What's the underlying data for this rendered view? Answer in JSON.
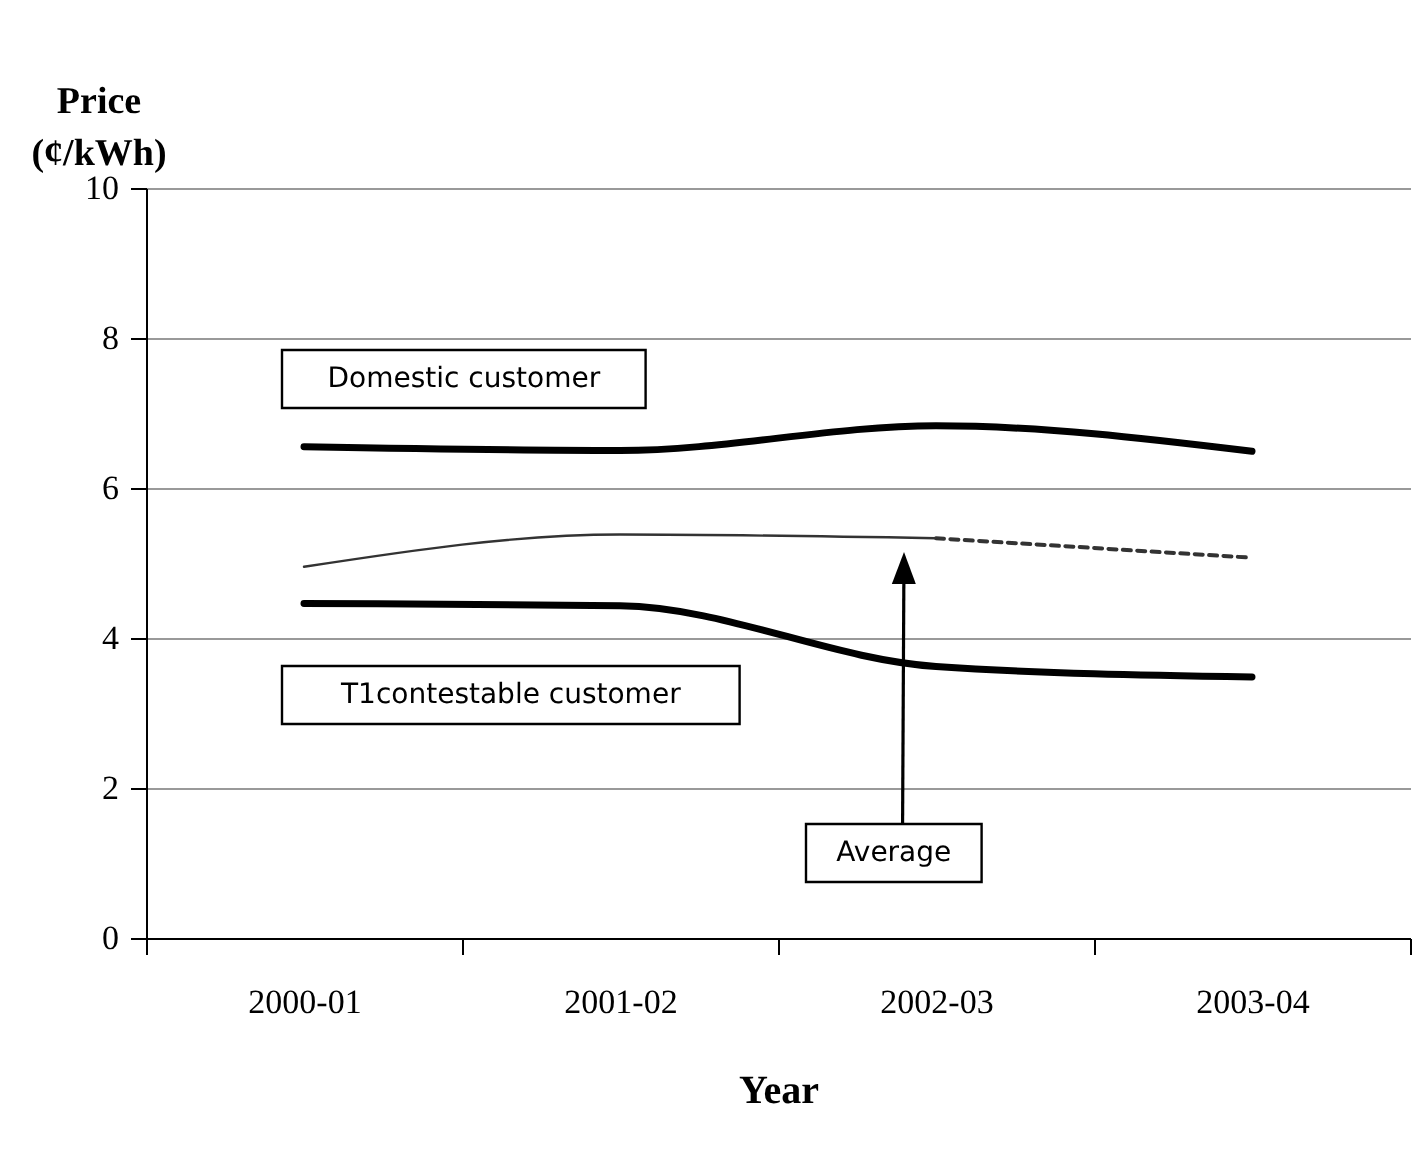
{
  "chart_data": {
    "type": "line",
    "xlabel": "Year",
    "ylabel": "Price (¢/kWh)",
    "categories": [
      "2000-01",
      "2001-02",
      "2002-03",
      "2003-04"
    ],
    "series": [
      {
        "name": "Domestic customer",
        "color": "#000000",
        "values": [
          6.55,
          6.5,
          6.83,
          6.49
        ]
      },
      {
        "name": "Average",
        "color": "#333333",
        "values": [
          4.95,
          5.38,
          5.33,
          null
        ]
      },
      {
        "color": "#333333",
        "line_style": "dashed",
        "values": [
          null,
          null,
          5.33,
          5.07
        ]
      },
      {
        "name": "T1contestable customer",
        "color": "#000000",
        "values": [
          4.46,
          4.43,
          3.62,
          3.48
        ]
      }
    ],
    "ylim": [
      0,
      10
    ],
    "yticks": [
      0,
      2,
      4,
      6,
      8,
      10
    ],
    "grid": "y",
    "legend": false
  }
}
